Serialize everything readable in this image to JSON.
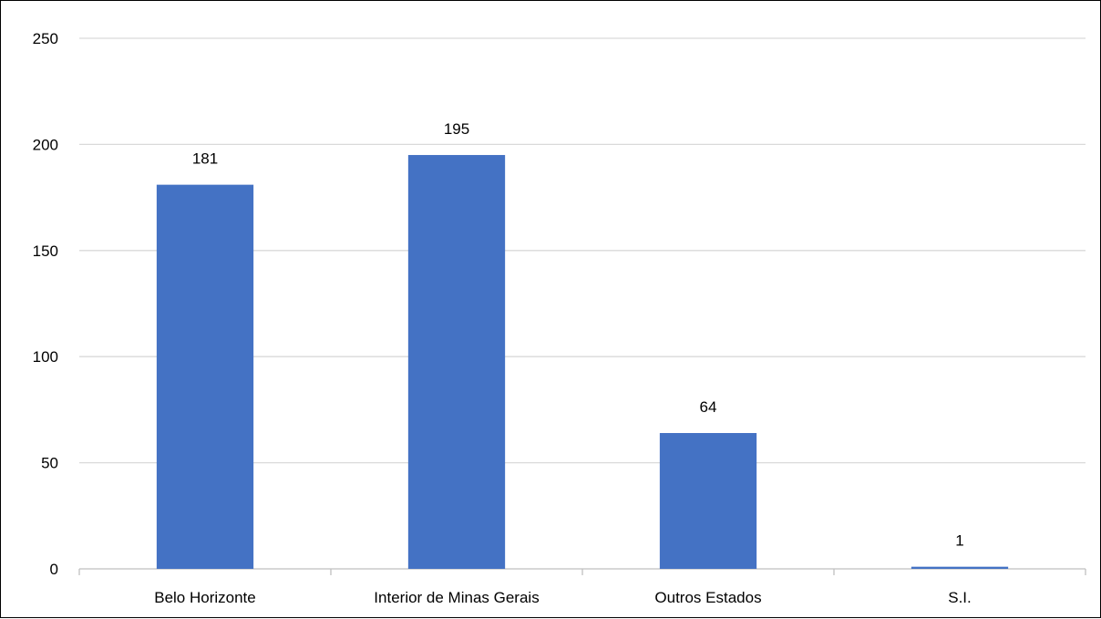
{
  "chart_data": {
    "type": "bar",
    "categories": [
      "Belo Horizonte",
      "Interior de Minas Gerais",
      "Outros Estados",
      "S.I."
    ],
    "values": [
      181,
      195,
      64,
      1
    ],
    "data_labels": [
      "181",
      "195",
      "64",
      "1"
    ],
    "title": "",
    "xlabel": "",
    "ylabel": "",
    "ylim": [
      0,
      250
    ],
    "yticks": [
      "0",
      "50",
      "100",
      "150",
      "200",
      "250"
    ],
    "grid": true,
    "legend": "none",
    "colors": {
      "bar": "#4472C4",
      "grid": "#D9D9D9",
      "axis": "#BFBFBF",
      "text": "#000000"
    }
  }
}
